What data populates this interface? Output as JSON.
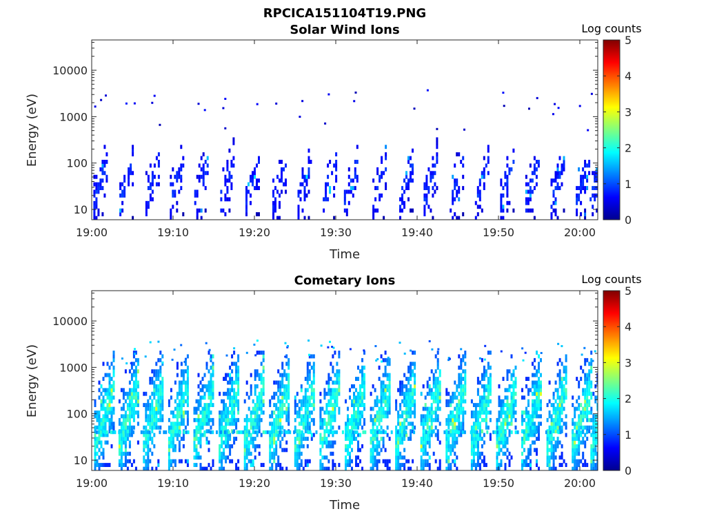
{
  "figure": {
    "title": "RPCICA151104T19.PNG"
  },
  "chart_data": [
    {
      "type": "heatmap",
      "title": "Solar Wind Ions",
      "xlabel": "Time",
      "ylabel": "Energy (eV)",
      "x_ticks": [
        "19:00",
        "19:10",
        "19:20",
        "19:30",
        "19:40",
        "19:50",
        "20:00"
      ],
      "x_range_minutes": [
        0,
        62
      ],
      "y_scale": "log",
      "y_ticks": [
        "10",
        "100",
        "1000",
        "10000"
      ],
      "y_range": [
        6,
        45000
      ],
      "colorbar": {
        "label": "Log counts",
        "ticks": [
          "0",
          "1",
          "2",
          "3",
          "4",
          "5"
        ],
        "range": [
          0,
          5
        ],
        "colormap": "jet"
      },
      "sweep_period_minutes": 3.33,
      "sweep_offsets_minutes": [
        0.2,
        3.4,
        6.6,
        9.6,
        12.6,
        15.8,
        18.9,
        22.2,
        25.3,
        28.4,
        31.0,
        34.5,
        37.8,
        40.8,
        44.0,
        47.1,
        50.2,
        53.3,
        56.4,
        59.5,
        61.2
      ],
      "energy_range_eV": [
        6,
        400
      ],
      "typical_log_counts": [
        0.2,
        1.0
      ],
      "peak_log_counts": 1.8
    },
    {
      "type": "heatmap",
      "title": "Cometary Ions",
      "xlabel": "Time",
      "ylabel": "Energy (eV)",
      "x_ticks": [
        "19:00",
        "19:10",
        "19:20",
        "19:30",
        "19:40",
        "19:50",
        "20:00"
      ],
      "x_range_minutes": [
        0,
        62
      ],
      "y_scale": "log",
      "y_ticks": [
        "10",
        "100",
        "1000",
        "10000"
      ],
      "y_range": [
        6,
        45000
      ],
      "colorbar": {
        "label": "Log counts",
        "ticks": [
          "0",
          "1",
          "2",
          "3",
          "4",
          "5"
        ],
        "range": [
          0,
          5
        ],
        "colormap": "jet"
      },
      "sweep_period_minutes": 3.33,
      "sweep_offsets_minutes": [
        0.3,
        3.3,
        6.3,
        9.4,
        12.5,
        15.6,
        18.7,
        21.8,
        24.9,
        28.0,
        31.1,
        34.2,
        37.3,
        40.4,
        43.5,
        46.6,
        49.7,
        52.8,
        55.9,
        59.0,
        61.3
      ],
      "energy_range_eV": [
        6,
        1000
      ],
      "typical_log_counts": [
        0.8,
        2.4
      ],
      "peak_log_counts": 3.0
    }
  ]
}
